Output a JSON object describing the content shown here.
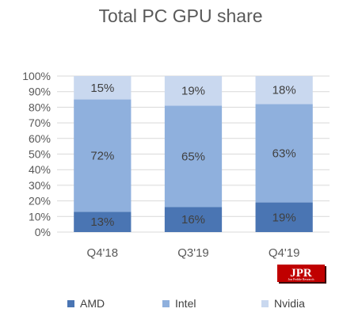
{
  "chart_data": {
    "type": "bar",
    "stacked": true,
    "title": "Total PC GPU share",
    "categories": [
      "Q4'18",
      "Q3'19",
      "Q4'19"
    ],
    "series": [
      {
        "name": "AMD",
        "values": [
          13,
          16,
          19
        ],
        "color": "#4a75b3"
      },
      {
        "name": "Intel",
        "values": [
          72,
          65,
          63
        ],
        "color": "#8fb0dd"
      },
      {
        "name": "Nvidia",
        "values": [
          15,
          19,
          18
        ],
        "color": "#c9d8ef"
      }
    ],
    "value_labels": [
      [
        "13%",
        "16%",
        "19%"
      ],
      [
        "72%",
        "65%",
        "63%"
      ],
      [
        "15%",
        "19%",
        "18%"
      ]
    ],
    "yticks": [
      "0%",
      "10%",
      "20%",
      "30%",
      "40%",
      "50%",
      "60%",
      "70%",
      "80%",
      "90%",
      "100%"
    ],
    "ylim": [
      0,
      100
    ],
    "grid": true,
    "legend": "bottom"
  },
  "logo": {
    "text": "JPR",
    "subtext": "Jon Peddie Research"
  }
}
